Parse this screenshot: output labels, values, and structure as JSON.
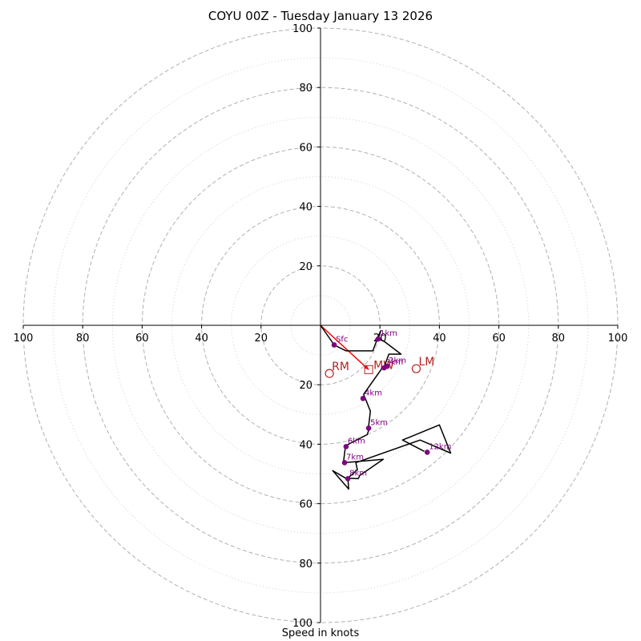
{
  "chart_data": {
    "type": "hodograph",
    "title": "COYU 00Z - Tuesday January 13 2026",
    "xlabel": "Speed in knots",
    "units": "knots",
    "range": [
      -100,
      100
    ],
    "ring_major": [
      20,
      40,
      60,
      80,
      100
    ],
    "ring_minor": [
      10,
      30,
      50,
      70,
      90
    ],
    "x_ticks": [
      {
        "value": -100,
        "label": "100"
      },
      {
        "value": -80,
        "label": "80"
      },
      {
        "value": -60,
        "label": "60"
      },
      {
        "value": -40,
        "label": "40"
      },
      {
        "value": -20,
        "label": "20"
      },
      {
        "value": 20,
        "label": "20"
      },
      {
        "value": 40,
        "label": "40"
      },
      {
        "value": 60,
        "label": "60"
      },
      {
        "value": 80,
        "label": "80"
      },
      {
        "value": 100,
        "label": "100"
      }
    ],
    "y_ticks": [
      {
        "value": 100,
        "label": "100"
      },
      {
        "value": 80,
        "label": "80"
      },
      {
        "value": 60,
        "label": "60"
      },
      {
        "value": 40,
        "label": "40"
      },
      {
        "value": 20,
        "label": "20"
      },
      {
        "value": -20,
        "label": "20"
      },
      {
        "value": -40,
        "label": "40"
      },
      {
        "value": -60,
        "label": "60"
      },
      {
        "value": -80,
        "label": "80"
      },
      {
        "value": -100,
        "label": "100"
      }
    ],
    "trace": [
      [
        0,
        0
      ],
      [
        4.6,
        -6.6
      ],
      [
        8.6,
        -8.6
      ],
      [
        17.6,
        -8.6
      ],
      [
        19.4,
        -3.8
      ],
      [
        20.3,
        -1.8
      ],
      [
        19.4,
        -4.6
      ],
      [
        21.4,
        -5.4
      ],
      [
        27.1,
        -9.7
      ],
      [
        23,
        -9.7
      ],
      [
        21.6,
        -13.5
      ],
      [
        22.4,
        -14.3
      ],
      [
        20.8,
        -14.3
      ],
      [
        14.5,
        -23.2
      ],
      [
        16.8,
        -28.9
      ],
      [
        16.2,
        -33.8
      ],
      [
        16.5,
        -34.6
      ],
      [
        15.7,
        -36.8
      ],
      [
        8.4,
        -40.5
      ],
      [
        7.8,
        -45.6
      ],
      [
        8.1,
        -46.2
      ],
      [
        21.1,
        -45.1
      ],
      [
        13.2,
        -50.5
      ],
      [
        12.7,
        -51.6
      ],
      [
        8.4,
        -51.4
      ],
      [
        4.1,
        -48.9
      ],
      [
        9.5,
        -55.1
      ],
      [
        9.2,
        -51.4
      ],
      [
        12.4,
        -48.6
      ],
      [
        11.9,
        -46.2
      ],
      [
        33.5,
        -38.6
      ],
      [
        43.8,
        -43
      ],
      [
        40,
        -33.5
      ],
      [
        27.6,
        -38.6
      ],
      [
        34.9,
        -42.4
      ]
    ],
    "heights": [
      {
        "label": "Sfc",
        "x": 4.6,
        "y": -6.6
      },
      {
        "label": "1km",
        "x": 19.4,
        "y": -4.6
      },
      {
        "label": "2km",
        "x": 22.4,
        "y": -13.8
      },
      {
        "label": "3km",
        "x": 21.4,
        "y": -14.3
      },
      {
        "label": "4km",
        "x": 14.3,
        "y": -24.6
      },
      {
        "label": "5km",
        "x": 16.2,
        "y": -34.6
      },
      {
        "label": "6km",
        "x": 8.6,
        "y": -40.8
      },
      {
        "label": "7km",
        "x": 8.1,
        "y": -46.2
      },
      {
        "label": "8km",
        "x": 9.2,
        "y": -51.6
      },
      {
        "label": "12km",
        "x": 35.9,
        "y": -42.7
      }
    ],
    "mean_wind_vector": {
      "x": 16.2,
      "y": -14.9,
      "label": "MW"
    },
    "storm_motion": [
      {
        "label": "RM",
        "x": 3,
        "y": -16.2
      },
      {
        "label": "LM",
        "x": 32.2,
        "y": -14.6
      }
    ],
    "colors": {
      "trace": "#000000",
      "height_points": "#800080",
      "mean_wind": "#ff0000",
      "storm_motion": "#b22222",
      "grid": "#b0b0b0"
    }
  }
}
